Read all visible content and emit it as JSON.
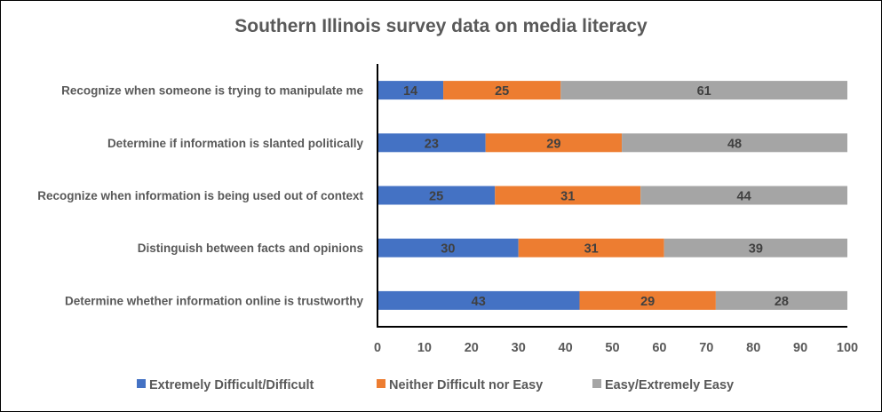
{
  "chart_data": {
    "type": "bar",
    "orientation": "horizontal",
    "stacked": true,
    "title": "Southern Illinois survey data on media literacy",
    "xlabel": "",
    "ylabel": "",
    "xlim": [
      0,
      100
    ],
    "xticks": [
      "0",
      "10",
      "20",
      "30",
      "40",
      "50",
      "60",
      "70",
      "80",
      "90",
      "100"
    ],
    "grid": false,
    "legend_position": "bottom",
    "categories": [
      "Recognize when someone is trying to manipulate me",
      "Determine if information is slanted politically",
      "Recognize when information is being used out of context",
      "Distinguish between facts and opinions",
      "Determine whether information online is trustworthy"
    ],
    "series": [
      {
        "name": "Extremely Difficult/Difficult",
        "color": "#4472C4",
        "values": [
          14,
          23,
          25,
          30,
          43
        ]
      },
      {
        "name": "Neither Difficult nor Easy",
        "color": "#ED7D31",
        "values": [
          25,
          29,
          31,
          31,
          29
        ]
      },
      {
        "name": "Easy/Extremely Easy",
        "color": "#A5A5A5",
        "values": [
          61,
          48,
          44,
          39,
          28
        ]
      }
    ]
  }
}
